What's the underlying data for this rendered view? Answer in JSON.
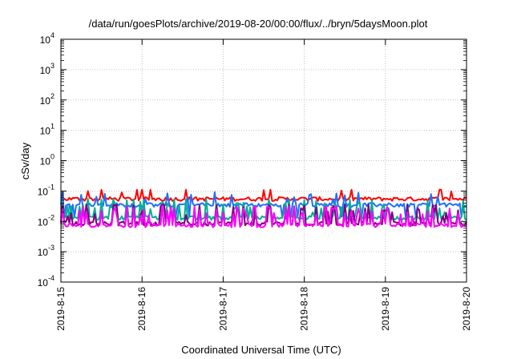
{
  "chart_data": {
    "type": "line",
    "title": "/data/run/goesPlots/archive/2019-08-20/00:00/flux/../bryn/5daysMoon.plot",
    "xlabel": "Coordinated Universal Time (UTC)",
    "ylabel": "cSv/day",
    "x_tick_labels": [
      "2019-8-15",
      "2019-8-16",
      "2019-8-17",
      "2019-8-18",
      "2019-8-19",
      "2019-8-20"
    ],
    "xlim": [
      "2019-08-15T00:00",
      "2019-08-20T00:00"
    ],
    "y_scale": "log",
    "ylim": [
      0.0001,
      10000
    ],
    "y_tick_labels": [
      {
        "base": "10",
        "exp": "4"
      },
      {
        "base": "10",
        "exp": "3"
      },
      {
        "base": "10",
        "exp": "2"
      },
      {
        "base": "10",
        "exp": "1"
      },
      {
        "base": "10",
        "exp": "0"
      },
      {
        "base": "10",
        "exp": "-1"
      },
      {
        "base": "10",
        "exp": "-2"
      },
      {
        "base": "10",
        "exp": "-3"
      },
      {
        "base": "10",
        "exp": "-4"
      }
    ],
    "grid": true,
    "series": [
      {
        "color": "#ff0000",
        "base": 0.055,
        "min": 0.04,
        "max": 0.11
      },
      {
        "color": "#1e6fff",
        "base": 0.035,
        "min": 0.012,
        "max": 0.1
      },
      {
        "color": "#00b090",
        "base": 0.013,
        "min": 0.008,
        "max": 0.08
      },
      {
        "color": "#800080",
        "base": 0.0085,
        "min": 0.006,
        "max": 0.07
      },
      {
        "color": "#ff00ff",
        "base": 0.0075,
        "min": 0.005,
        "max": 0.07
      }
    ]
  }
}
